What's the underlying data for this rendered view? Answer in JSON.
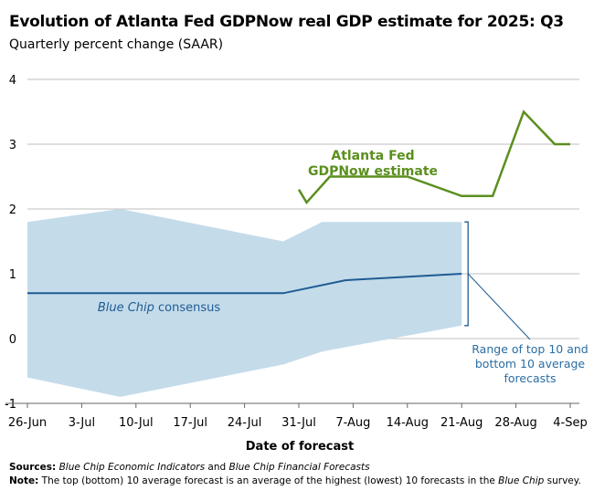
{
  "chart_data": {
    "type": "line",
    "title": "Evolution of Atlanta Fed GDPNow real GDP estimate for 2025: Q3",
    "subtitle": "Quarterly percent change (SAAR)",
    "xlabel": "Date of forecast",
    "ylabel": "",
    "ylim": [
      -1,
      4
    ],
    "yticks": [
      "-1",
      "0",
      "1",
      "2",
      "3",
      "4"
    ],
    "xlim_days": [
      0,
      70
    ],
    "xticks": [
      {
        "day": 0,
        "label": "26-Jun"
      },
      {
        "day": 7,
        "label": "3-Jul"
      },
      {
        "day": 14,
        "label": "10-Jul"
      },
      {
        "day": 21,
        "label": "17-Jul"
      },
      {
        "day": 28,
        "label": "24-Jul"
      },
      {
        "day": 35,
        "label": "31-Jul"
      },
      {
        "day": 42,
        "label": "7-Aug"
      },
      {
        "day": 49,
        "label": "14-Aug"
      },
      {
        "day": 56,
        "label": "21-Aug"
      },
      {
        "day": 63,
        "label": "28-Aug"
      },
      {
        "day": 70,
        "label": "4-Sep"
      }
    ],
    "series": [
      {
        "name": "Atlanta Fed GDPNow estimate",
        "color": "#5b8f1e",
        "x": [
          35,
          36,
          39,
          43,
          49,
          56,
          60,
          64,
          68,
          70
        ],
        "y": [
          2.3,
          2.1,
          2.5,
          2.5,
          2.5,
          2.2,
          2.2,
          3.5,
          3.0,
          3.0
        ]
      },
      {
        "name": "Blue Chip consensus",
        "color": "#1f5b93",
        "x": [
          0,
          33,
          41,
          56
        ],
        "y": [
          0.7,
          0.7,
          0.9,
          1.0
        ]
      }
    ],
    "range_band": {
      "name": "Range of top 10 and bottom 10 average forecasts",
      "color": "#c4dbea",
      "x": [
        0,
        12,
        33,
        38,
        56
      ],
      "upper": [
        1.8,
        2.0,
        1.5,
        1.8,
        1.8
      ],
      "lower": [
        -0.6,
        -0.9,
        -0.4,
        -0.2,
        0.2
      ]
    },
    "annotations": {
      "gdpnow_line1": "Atlanta Fed",
      "gdpnow_line2": "GDPNow estimate",
      "consensus_italic": "Blue Chip",
      "consensus_rest": " consensus",
      "range_line1": "Range of top 10 and",
      "range_line2": "bottom 10 average",
      "range_line3": "forecasts"
    }
  },
  "footer": {
    "sources_label": "Sources:",
    "sources_italic1": "Blue Chip Economic Indicators",
    "sources_and": " and ",
    "sources_italic2": "Blue Chip Financial Forecasts",
    "note_label": "Note:",
    "note_text1": " The top (bottom) 10 average forecast is an average of the highest (lowest) 10 forecasts in the ",
    "note_italic": "Blue Chip",
    "note_text2": " survey."
  },
  "colors": {
    "gdpnow": "#5b8f1e",
    "consensus": "#1f5b93",
    "band": "#c4dbea",
    "grid": "#bfbfbf",
    "range_label": "#2a6ea3"
  }
}
